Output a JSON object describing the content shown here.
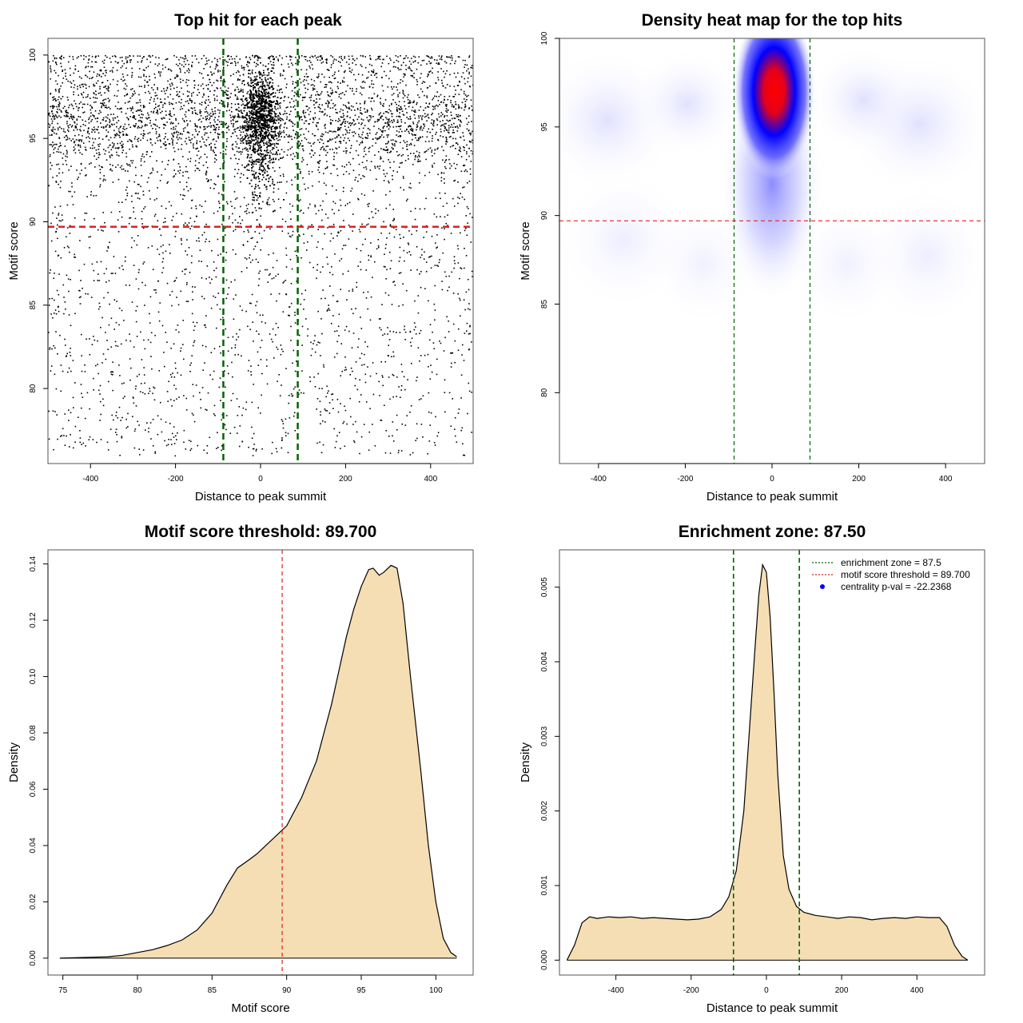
{
  "chart_data": [
    {
      "type": "scatter",
      "title": "Top hit for each peak",
      "xlabel": "Distance to peak summit",
      "ylabel": "Motif score",
      "xlim": [
        -500,
        500
      ],
      "ylim": [
        75.5,
        101.0
      ],
      "xticks": [
        -400,
        -200,
        0,
        200,
        400
      ],
      "yticks": [
        80,
        85,
        90,
        95,
        100
      ],
      "vlines": [
        {
          "x": -87.5,
          "color": "#006400"
        },
        {
          "x": 87.5,
          "color": "#006400"
        }
      ],
      "hlines": [
        {
          "y": 89.7,
          "color": "#dd2222"
        }
      ],
      "distribution": {
        "central_cluster": {
          "x_center": 0,
          "x_spread": 30,
          "y_mode": 96.5,
          "y_min": 86,
          "y_max": 100
        },
        "background": {
          "x_range": [
            -500,
            500
          ],
          "y_mode": 96,
          "y_min": 76,
          "y_max": 100
        }
      }
    },
    {
      "type": "heatmap",
      "title": "Density heat map for the top hits",
      "xlabel": "Distance to peak summit",
      "ylabel": "Motif score",
      "xlim": [
        -490,
        490
      ],
      "ylim": [
        76,
        100
      ],
      "xticks": [
        -400,
        -200,
        0,
        200,
        400
      ],
      "yticks": [
        80,
        85,
        90,
        95,
        100
      ],
      "color_scale": [
        "#ffffff",
        "#0000ff",
        "#ff0000"
      ],
      "peak": {
        "x": 5,
        "y": 97
      },
      "vlines": [
        {
          "x": -87.5,
          "color": "#006400"
        },
        {
          "x": 87.5,
          "color": "#006400"
        }
      ],
      "hlines": [
        {
          "y": 89.7,
          "color": "#dd2222"
        }
      ]
    },
    {
      "type": "area",
      "title": "Motif score threshold: 89.700",
      "xlabel": "Motif score",
      "ylabel": "Density",
      "xlim": [
        74.0,
        102.5
      ],
      "ylim": [
        -0.006,
        0.145
      ],
      "xticks": [
        75,
        80,
        85,
        90,
        95,
        100
      ],
      "yticks": [
        0.0,
        0.02,
        0.04,
        0.06,
        0.08,
        0.1,
        0.12,
        0.14
      ],
      "ytick_labels": [
        "0.00",
        "0.02",
        "0.04",
        "0.06",
        "0.08",
        "0.10",
        "0.12",
        "0.14"
      ],
      "fill_color": "#f5deb3",
      "vlines": [
        {
          "x": 89.7,
          "color": "#dd2222"
        }
      ],
      "x": [
        74.8,
        76,
        78,
        79,
        80,
        81,
        82,
        83,
        84,
        85,
        86,
        86.7,
        87.5,
        88,
        89,
        90,
        91,
        92,
        93,
        93.5,
        94,
        94.5,
        95,
        95.5,
        95.8,
        96.2,
        96.5,
        97,
        97.4,
        97.8,
        98.3,
        99,
        99.5,
        100,
        100.5,
        101,
        101.4
      ],
      "y": [
        0.0,
        0.0002,
        0.0005,
        0.001,
        0.002,
        0.003,
        0.0045,
        0.0065,
        0.01,
        0.016,
        0.026,
        0.032,
        0.035,
        0.037,
        0.042,
        0.047,
        0.057,
        0.07,
        0.09,
        0.102,
        0.114,
        0.124,
        0.132,
        0.138,
        0.1385,
        0.136,
        0.137,
        0.1395,
        0.1385,
        0.126,
        0.1,
        0.066,
        0.04,
        0.02,
        0.007,
        0.002,
        0.0005
      ]
    },
    {
      "type": "area",
      "title": "Enrichment zone: 87.50",
      "xlabel": "Distance to peak summit",
      "ylabel": "Density",
      "xlim": [
        -550,
        580
      ],
      "ylim": [
        -0.0002,
        0.0055
      ],
      "xticks": [
        -400,
        -200,
        0,
        200,
        400
      ],
      "yticks": [
        0.0,
        0.001,
        0.002,
        0.003,
        0.004,
        0.005
      ],
      "ytick_labels": [
        "0.000",
        "0.001",
        "0.002",
        "0.003",
        "0.004",
        "0.005"
      ],
      "fill_color": "#f5deb3",
      "vlines": [
        {
          "x": -87.5,
          "color": "#006400"
        },
        {
          "x": 87.5,
          "color": "#006400"
        }
      ],
      "x": [
        -530,
        -510,
        -490,
        -470,
        -450,
        -420,
        -390,
        -360,
        -330,
        -300,
        -270,
        -240,
        -210,
        -180,
        -150,
        -120,
        -100,
        -80,
        -60,
        -45,
        -30,
        -20,
        -10,
        0,
        10,
        20,
        30,
        45,
        60,
        80,
        100,
        130,
        160,
        190,
        220,
        250,
        280,
        310,
        340,
        370,
        400,
        430,
        460,
        480,
        500,
        520,
        535
      ],
      "y": [
        0.0,
        0.0002,
        0.0005,
        0.00058,
        0.00056,
        0.00058,
        0.00057,
        0.00058,
        0.00056,
        0.00057,
        0.00056,
        0.00055,
        0.00054,
        0.00055,
        0.00058,
        0.00068,
        0.00085,
        0.0012,
        0.002,
        0.0031,
        0.0042,
        0.0049,
        0.0053,
        0.0052,
        0.0046,
        0.0036,
        0.0025,
        0.0014,
        0.00095,
        0.00072,
        0.00064,
        0.0006,
        0.00058,
        0.00056,
        0.00058,
        0.00057,
        0.00054,
        0.00056,
        0.00057,
        0.00056,
        0.00058,
        0.00057,
        0.00057,
        0.00045,
        0.0002,
        5e-05,
        0.0
      ]
    }
  ],
  "legend": {
    "items": [
      {
        "label": "enrichment zone = 87.5",
        "color": "#006400",
        "kind": "line"
      },
      {
        "label": "motif score threshold = 89.700",
        "color": "#dd2222",
        "kind": "line"
      },
      {
        "label": "centrality p-val = -22.2368",
        "color": "#0000ff",
        "kind": "dot"
      }
    ]
  }
}
